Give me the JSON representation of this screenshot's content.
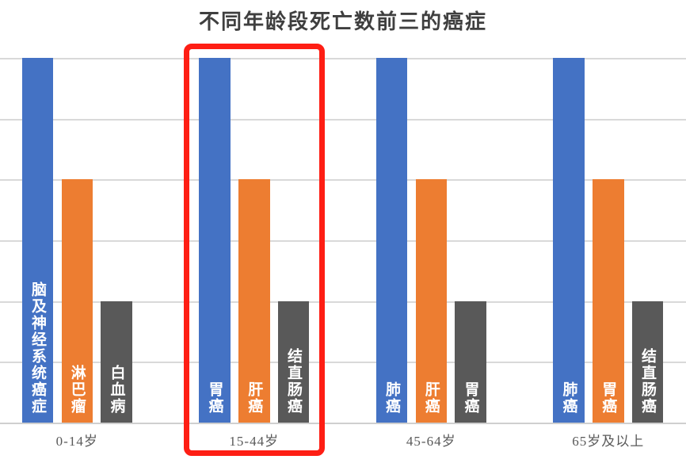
{
  "chart_data": {
    "type": "bar",
    "title": "不同年龄段死亡数前三的癌症",
    "categories": [
      "0-14岁",
      "15-44岁",
      "45-64岁",
      "65岁及以上"
    ],
    "xlabel": "",
    "ylabel": "",
    "ylim": [
      0,
      6
    ],
    "grid": "horizontal",
    "gridline_values": [
      0,
      1,
      2,
      3,
      4,
      5,
      6
    ],
    "legend": "none",
    "bar_colors": {
      "rank1": "#4472C4",
      "rank2": "#ED7D31",
      "rank3": "#595959"
    },
    "groups": [
      {
        "category": "0-14岁",
        "highlighted": false,
        "bars": [
          {
            "rank": 1,
            "label": "脑及神经系统癌症",
            "value": 6,
            "color": "#4472C4"
          },
          {
            "rank": 2,
            "label": "淋巴瘤",
            "value": 4,
            "color": "#ED7D31"
          },
          {
            "rank": 3,
            "label": "白血病",
            "value": 2,
            "color": "#595959"
          }
        ]
      },
      {
        "category": "15-44岁",
        "highlighted": true,
        "bars": [
          {
            "rank": 1,
            "label": "胃癌",
            "value": 6,
            "color": "#4472C4"
          },
          {
            "rank": 2,
            "label": "肝癌",
            "value": 4,
            "color": "#ED7D31"
          },
          {
            "rank": 3,
            "label": "结直肠癌",
            "value": 2,
            "color": "#595959"
          }
        ]
      },
      {
        "category": "45-64岁",
        "highlighted": false,
        "bars": [
          {
            "rank": 1,
            "label": "肺癌",
            "value": 6,
            "color": "#4472C4"
          },
          {
            "rank": 2,
            "label": "肝癌",
            "value": 4,
            "color": "#ED7D31"
          },
          {
            "rank": 3,
            "label": "胃癌",
            "value": 2,
            "color": "#595959"
          }
        ]
      },
      {
        "category": "65岁及以上",
        "highlighted": false,
        "bars": [
          {
            "rank": 1,
            "label": "肺癌",
            "value": 6,
            "color": "#4472C4"
          },
          {
            "rank": 2,
            "label": "胃癌",
            "value": 4,
            "color": "#ED7D31"
          },
          {
            "rank": 3,
            "label": "结直肠癌",
            "value": 2,
            "color": "#595959"
          }
        ]
      }
    ],
    "annotation": {
      "type": "highlight-box",
      "target_category": "15-44岁",
      "color": "#fe1e14"
    }
  }
}
